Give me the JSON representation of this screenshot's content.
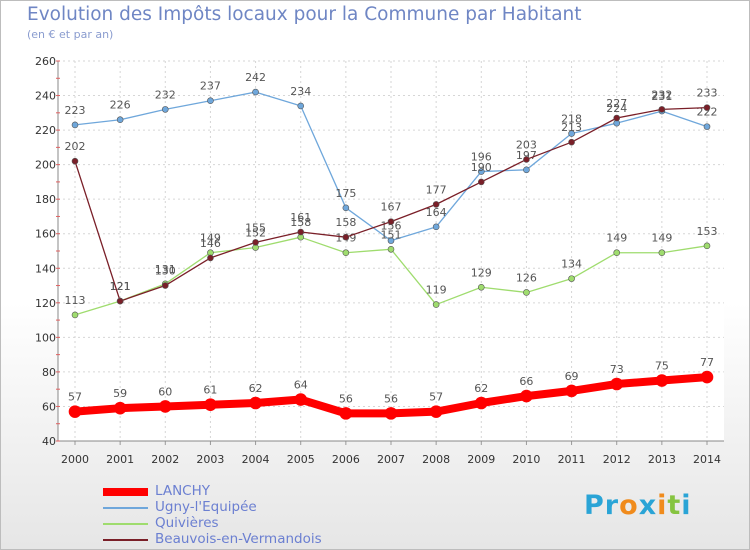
{
  "title": "Evolution des Impôts locaux pour la Commune par Habitant",
  "subtitle": "(en € et par an)",
  "logo": {
    "letters": [
      "P",
      "r",
      "o",
      "x",
      "i",
      "t",
      "i"
    ],
    "colors": [
      "#2aa4d6",
      "#2aa4d6",
      "#f08b1c",
      "#2aa4d6",
      "#f08b1c",
      "#86c440",
      "#2aa4d6"
    ]
  },
  "chart_data": {
    "type": "line",
    "title": "Evolution des Impôts locaux pour la Commune par Habitant",
    "subtitle": "(en € et par an)",
    "xlabel": "",
    "ylabel": "",
    "x": [
      "2000",
      "2001",
      "2002",
      "2003",
      "2004",
      "2005",
      "2006",
      "2007",
      "2008",
      "2009",
      "2010",
      "2011",
      "2012",
      "2013",
      "2014"
    ],
    "ylim": [
      40,
      260
    ],
    "yticks": [
      40,
      60,
      80,
      100,
      120,
      140,
      160,
      180,
      200,
      220,
      240,
      260
    ],
    "grid": true,
    "legend": "bottom-left",
    "series": [
      {
        "name": "Ugny-l'Equipée",
        "color": "#6fa7db",
        "width": 1.3,
        "values": [
          223,
          226,
          232,
          237,
          242,
          234,
          175,
          156,
          164,
          196,
          197,
          218,
          224,
          231,
          222
        ],
        "labels": [
          "223",
          "226",
          "232",
          "237",
          "242",
          "234",
          "175",
          "156",
          "164",
          "196",
          "197",
          "218",
          "224",
          "231",
          "222"
        ]
      },
      {
        "name": "Quivières",
        "color": "#9fdc6e",
        "width": 1.3,
        "values": [
          113,
          121,
          131,
          149,
          152,
          158,
          149,
          151,
          119,
          129,
          126,
          134,
          149,
          149,
          153
        ],
        "labels": [
          "113",
          "121",
          "131",
          "149",
          "152",
          "158",
          "149",
          "151",
          "119",
          "129",
          "126",
          "134",
          "149",
          "149",
          "153"
        ]
      },
      {
        "name": "Beauvois-en-Vermandois",
        "color": "#7a1f28",
        "width": 1.3,
        "values": [
          202,
          121,
          130,
          146,
          155,
          161,
          158,
          167,
          177,
          190,
          203,
          213,
          227,
          232,
          233
        ],
        "labels": [
          "202",
          "121",
          "130",
          "146",
          "155",
          "161",
          "158",
          "167",
          "177",
          "190",
          "203",
          "213",
          "227",
          "232",
          "233"
        ]
      },
      {
        "name": "LANCHY",
        "color": "#ff0000",
        "width": 8,
        "values": [
          57,
          59,
          60,
          61,
          62,
          64,
          56,
          56,
          57,
          62,
          66,
          69,
          73,
          75,
          77
        ],
        "labels": [
          "57",
          "59",
          "60",
          "61",
          "62",
          "64",
          "56",
          "56",
          "57",
          "62",
          "66",
          "69",
          "73",
          "75",
          "77"
        ]
      }
    ]
  },
  "legend_items": [
    {
      "name": "LANCHY",
      "color": "#ff0000",
      "thick": 8
    },
    {
      "name": "Ugny-l'Equipée",
      "color": "#6fa7db",
      "thick": 2
    },
    {
      "name": "Quivières",
      "color": "#9fdc6e",
      "thick": 2
    },
    {
      "name": "Beauvois-en-Vermandois",
      "color": "#7a1f28",
      "thick": 2
    }
  ]
}
